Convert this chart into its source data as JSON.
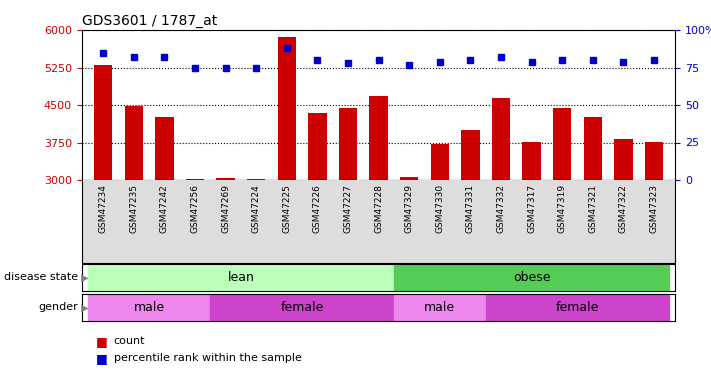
{
  "title": "GDS3601 / 1787_at",
  "samples": [
    "GSM47234",
    "GSM47235",
    "GSM47242",
    "GSM47256",
    "GSM47269",
    "GSM47224",
    "GSM47225",
    "GSM47226",
    "GSM47227",
    "GSM47228",
    "GSM47329",
    "GSM47330",
    "GSM47331",
    "GSM47332",
    "GSM47317",
    "GSM47319",
    "GSM47321",
    "GSM47322",
    "GSM47323"
  ],
  "counts": [
    5300,
    4490,
    4260,
    3020,
    3040,
    3020,
    5870,
    4350,
    4450,
    4680,
    3060,
    3720,
    4000,
    4640,
    3760,
    4450,
    4260,
    3820,
    3760
  ],
  "percentiles": [
    85,
    82,
    82,
    75,
    75,
    75,
    88,
    80,
    78,
    80,
    77,
    79,
    80,
    82,
    79,
    80,
    80,
    79,
    80
  ],
  "ylim_left": [
    3000,
    6000
  ],
  "ylim_right": [
    0,
    100
  ],
  "yticks_left": [
    3000,
    3750,
    4500,
    5250,
    6000
  ],
  "yticks_right": [
    0,
    25,
    50,
    75,
    100
  ],
  "bar_color": "#cc0000",
  "dot_color": "#0000cc",
  "disease_state_lean_color": "#bbffbb",
  "disease_state_obese_color": "#55cc55",
  "gender_male_color": "#ee88ee",
  "gender_female_color": "#cc44cc",
  "lean_range": [
    0,
    10
  ],
  "obese_range": [
    10,
    19
  ],
  "male_lean_range": [
    0,
    4
  ],
  "female_lean_range": [
    4,
    10
  ],
  "male_obese_range": [
    10,
    13
  ],
  "female_obese_range": [
    13,
    19
  ],
  "legend_items": [
    {
      "label": "count",
      "color": "#cc0000"
    },
    {
      "label": "percentile rank within the sample",
      "color": "#0000cc"
    }
  ]
}
